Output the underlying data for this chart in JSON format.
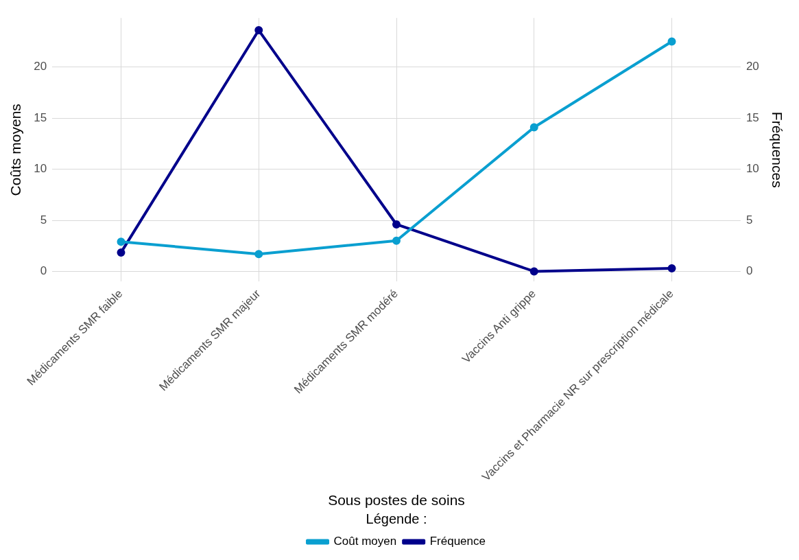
{
  "chart_data": {
    "type": "line",
    "xlabel": "Sous postes de soins",
    "ylabel": "Coûts moyens",
    "y2label": "Fréquences",
    "legend_title": "Légende :",
    "legend": "bottom",
    "grid": true,
    "marker": "circle",
    "line_style": "solid",
    "categories": [
      "Médicaments SMR faible",
      "Médicaments SMR majeur",
      "Médicaments SMR modéré",
      "Vaccins Anti grippe",
      "Vaccins et Pharmacie NR sur prescription médicale"
    ],
    "ylim": [
      -1,
      24.8
    ],
    "yticks": [
      0,
      5,
      10,
      15,
      20
    ],
    "y2lim": [
      -1,
      24.8
    ],
    "y2ticks": [
      0,
      5,
      10,
      15,
      20
    ],
    "series": [
      {
        "name": "Coût moyen",
        "color": "#0a9fd0",
        "values": [
          2.9,
          1.7,
          3.0,
          14.1,
          22.5
        ]
      },
      {
        "name": "Fréquence",
        "color": "#00008b",
        "axis": "y2",
        "values": [
          1.85,
          23.6,
          4.6,
          0,
          0.3
        ]
      }
    ]
  }
}
